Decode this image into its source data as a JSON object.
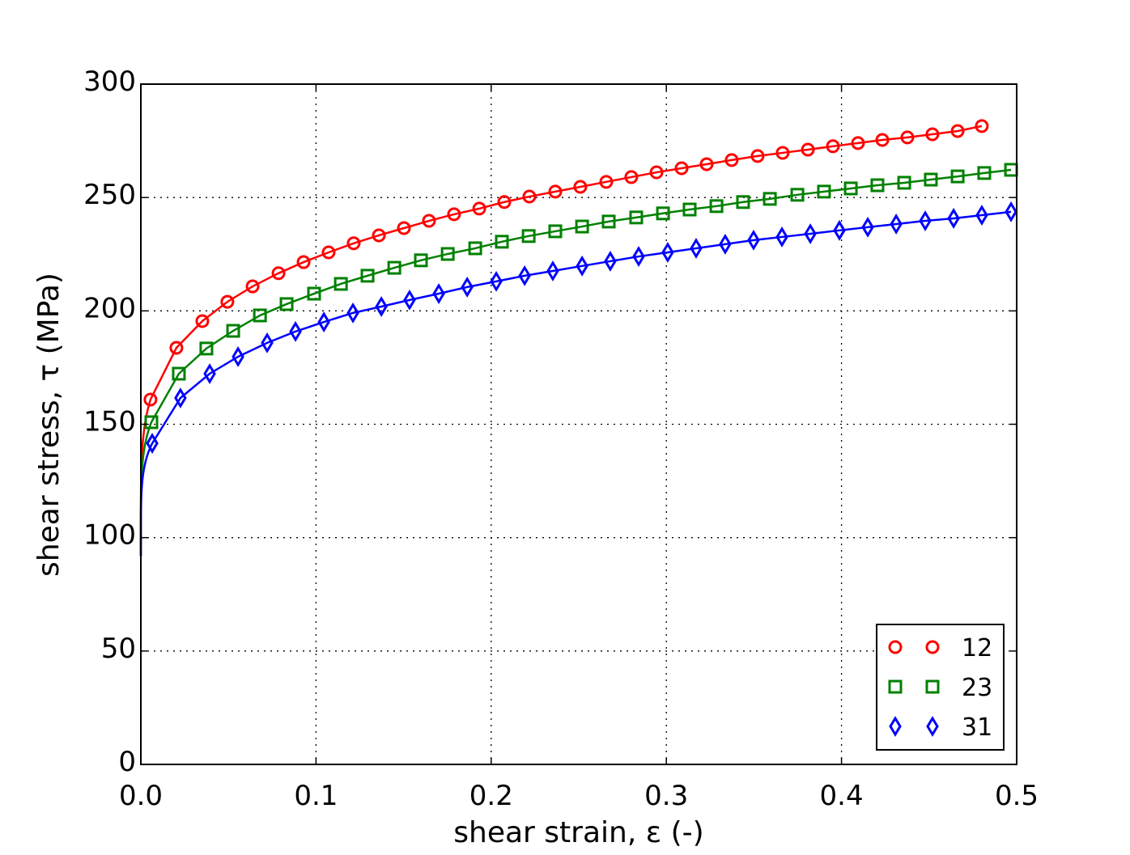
{
  "chart_data": {
    "type": "line",
    "title": "",
    "xlabel": "shear strain, ε (-)",
    "ylabel": "shear stress, τ (MPa)",
    "xlim": [
      0.0,
      0.5
    ],
    "ylim": [
      0,
      300
    ],
    "xticks": [
      "0.0",
      "0.1",
      "0.2",
      "0.3",
      "0.4",
      "0.5"
    ],
    "yticks": [
      "0",
      "50",
      "100",
      "150",
      "200",
      "250",
      "300"
    ],
    "grid": true,
    "grid_style": "dotted",
    "legend_placement": "lower-right",
    "line_start": {
      "x": 0.0,
      "y": 92
    },
    "series": [
      {
        "name": "12",
        "color": "#ff0000",
        "marker": "circle",
        "x": [
          0.0055,
          0.0203,
          0.0351,
          0.0494,
          0.0638,
          0.0786,
          0.0929,
          0.1072,
          0.1215,
          0.1359,
          0.1502,
          0.1645,
          0.1788,
          0.1932,
          0.2075,
          0.2218,
          0.2366,
          0.2509,
          0.2657,
          0.28,
          0.2944,
          0.3087,
          0.323,
          0.3373,
          0.3521,
          0.3664,
          0.3808,
          0.3951,
          0.4094,
          0.4233,
          0.4376,
          0.4519,
          0.4663,
          0.4801
        ],
        "y": [
          160.9,
          183.7,
          195.5,
          204.0,
          210.8,
          216.6,
          221.5,
          225.8,
          229.8,
          233.3,
          236.5,
          239.7,
          242.6,
          245.1,
          248.0,
          250.4,
          252.6,
          254.7,
          256.9,
          259.0,
          261.1,
          262.9,
          264.7,
          266.5,
          268.3,
          269.7,
          271.1,
          272.6,
          274.0,
          275.4,
          276.5,
          277.9,
          279.3,
          281.5
        ]
      },
      {
        "name": "23",
        "color": "#008000",
        "marker": "square",
        "x": [
          0.006,
          0.0217,
          0.0374,
          0.0527,
          0.068,
          0.0832,
          0.0989,
          0.1142,
          0.1294,
          0.1447,
          0.1599,
          0.1752,
          0.1909,
          0.2061,
          0.2214,
          0.2366,
          0.2519,
          0.2671,
          0.2828,
          0.2981,
          0.3133,
          0.3286,
          0.3438,
          0.3591,
          0.3748,
          0.39,
          0.4053,
          0.4205,
          0.4358,
          0.451,
          0.4663,
          0.4815,
          0.4968
        ],
        "y": [
          150.9,
          172.3,
          183.4,
          191.2,
          198.0,
          203.0,
          207.6,
          211.9,
          215.5,
          219.0,
          222.3,
          225.1,
          227.6,
          230.5,
          233.0,
          235.1,
          237.2,
          239.4,
          241.2,
          243.0,
          244.7,
          246.2,
          248.0,
          249.4,
          251.2,
          252.6,
          254.0,
          255.4,
          256.5,
          257.9,
          259.3,
          260.8,
          262.2
        ]
      },
      {
        "name": "31",
        "color": "#0000ff",
        "marker": "thin_diamond",
        "x": [
          0.0065,
          0.0226,
          0.0393,
          0.0555,
          0.0721,
          0.0883,
          0.1045,
          0.1211,
          0.1373,
          0.1534,
          0.1701,
          0.1863,
          0.2029,
          0.2191,
          0.2352,
          0.2519,
          0.268,
          0.2842,
          0.3008,
          0.317,
          0.3336,
          0.3498,
          0.366,
          0.3822,
          0.3988,
          0.415,
          0.4312,
          0.4478,
          0.464,
          0.4801,
          0.4968
        ],
        "y": [
          141.6,
          161.6,
          172.3,
          179.8,
          185.9,
          190.9,
          195.1,
          199.1,
          201.9,
          204.8,
          207.6,
          210.5,
          213.0,
          215.5,
          217.6,
          219.8,
          221.9,
          224.0,
          225.8,
          227.6,
          229.4,
          231.2,
          232.6,
          234.0,
          235.5,
          236.9,
          238.3,
          239.7,
          240.8,
          242.2,
          243.7
        ]
      }
    ]
  }
}
